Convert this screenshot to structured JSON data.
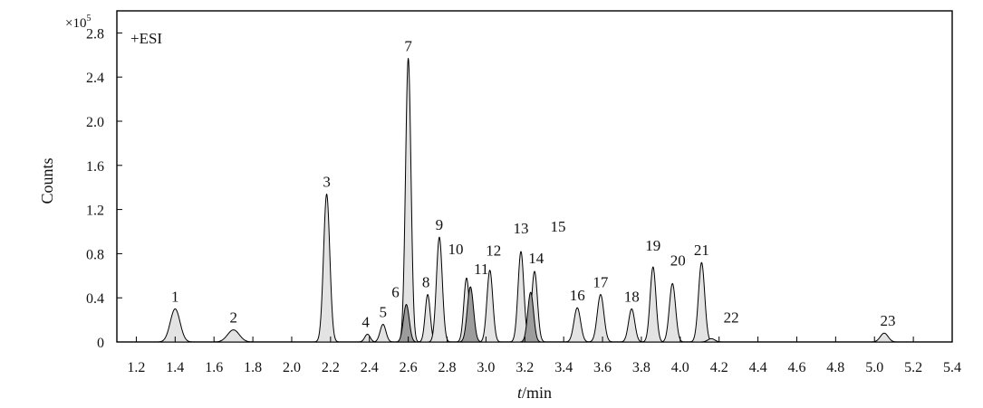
{
  "chart_data": {
    "type": "line",
    "annotation": "+ESI",
    "xlabel_italic": "t",
    "xlabel_rest": "/min",
    "ylabel": "Counts",
    "y_multiplier": "×10",
    "y_multiplier_exp": "5",
    "xlim": [
      1.1,
      5.4
    ],
    "ylim": [
      0,
      3.0
    ],
    "x_ticks": [
      1.2,
      1.4,
      1.6,
      1.8,
      2.0,
      2.2,
      2.4,
      2.6,
      2.8,
      3.0,
      3.2,
      3.4,
      3.6,
      3.8,
      4.0,
      4.2,
      4.4,
      4.6,
      4.8,
      5.0,
      5.2,
      5.4
    ],
    "x_tick_labels": [
      "1.2",
      "1.4",
      "1.6",
      "1.8",
      "2.0",
      "2.2",
      "2.4",
      "2.6",
      "2.8",
      "3.0",
      "3.2",
      "3.4",
      "3.6",
      "3.8",
      "4.0",
      "4.2",
      "4.4",
      "4.6",
      "4.8",
      "5.0",
      "5.2",
      "5.4"
    ],
    "y_ticks": [
      0,
      0.4,
      0.8,
      1.2,
      1.6,
      2.0,
      2.4,
      2.8
    ],
    "y_tick_labels": [
      "0",
      "0.4",
      "0.8",
      "1.2",
      "1.6",
      "2.0",
      "2.4",
      "2.8"
    ],
    "peaks": [
      {
        "label": "1",
        "rt": 1.4,
        "height": 0.3,
        "width": 0.025,
        "shade": "light"
      },
      {
        "label": "2",
        "rt": 1.7,
        "height": 0.11,
        "width": 0.03,
        "shade": "light"
      },
      {
        "label": "3",
        "rt": 2.18,
        "height": 1.34,
        "width": 0.016,
        "shade": "light"
      },
      {
        "label": "4",
        "rt": 2.39,
        "height": 0.07,
        "width": 0.014,
        "shade": "light"
      },
      {
        "label": "5",
        "rt": 2.47,
        "height": 0.16,
        "width": 0.015,
        "shade": "light"
      },
      {
        "label": "6",
        "rt": 2.59,
        "height": 0.34,
        "width": 0.015,
        "shade": "dark"
      },
      {
        "label": "7",
        "rt": 2.6,
        "height": 2.57,
        "width": 0.014,
        "shade": "light"
      },
      {
        "label": "8",
        "rt": 2.7,
        "height": 0.43,
        "width": 0.013,
        "shade": "light"
      },
      {
        "label": "9",
        "rt": 2.76,
        "height": 0.95,
        "width": 0.015,
        "shade": "light"
      },
      {
        "label": "10",
        "rt": 2.9,
        "height": 0.58,
        "width": 0.014,
        "shade": "light"
      },
      {
        "label": "11",
        "rt": 2.92,
        "height": 0.5,
        "width": 0.016,
        "shade": "dark"
      },
      {
        "label": "12",
        "rt": 3.02,
        "height": 0.65,
        "width": 0.015,
        "shade": "light"
      },
      {
        "label": "13",
        "rt": 3.18,
        "height": 0.82,
        "width": 0.015,
        "shade": "light"
      },
      {
        "label": "14",
        "rt": 3.23,
        "height": 0.45,
        "width": 0.015,
        "shade": "dark"
      },
      {
        "label": "15",
        "rt": 3.25,
        "height": 0.64,
        "width": 0.015,
        "shade": "light"
      },
      {
        "label": "16",
        "rt": 3.47,
        "height": 0.31,
        "width": 0.017,
        "shade": "light"
      },
      {
        "label": "17",
        "rt": 3.59,
        "height": 0.43,
        "width": 0.017,
        "shade": "light"
      },
      {
        "label": "18",
        "rt": 3.75,
        "height": 0.3,
        "width": 0.016,
        "shade": "light"
      },
      {
        "label": "19",
        "rt": 3.86,
        "height": 0.68,
        "width": 0.015,
        "shade": "light"
      },
      {
        "label": "20",
        "rt": 3.96,
        "height": 0.53,
        "width": 0.016,
        "shade": "light"
      },
      {
        "label": "21",
        "rt": 4.11,
        "height": 0.72,
        "width": 0.016,
        "shade": "light"
      },
      {
        "label": "22",
        "rt": 4.16,
        "height": 0.03,
        "width": 0.018,
        "shade": "light"
      },
      {
        "label": "23",
        "rt": 5.05,
        "height": 0.08,
        "width": 0.02,
        "shade": "light"
      }
    ],
    "colors": {
      "light_fill": "#e3e3e3",
      "dark_fill": "#9c9c9c",
      "stroke": "#000000"
    }
  }
}
